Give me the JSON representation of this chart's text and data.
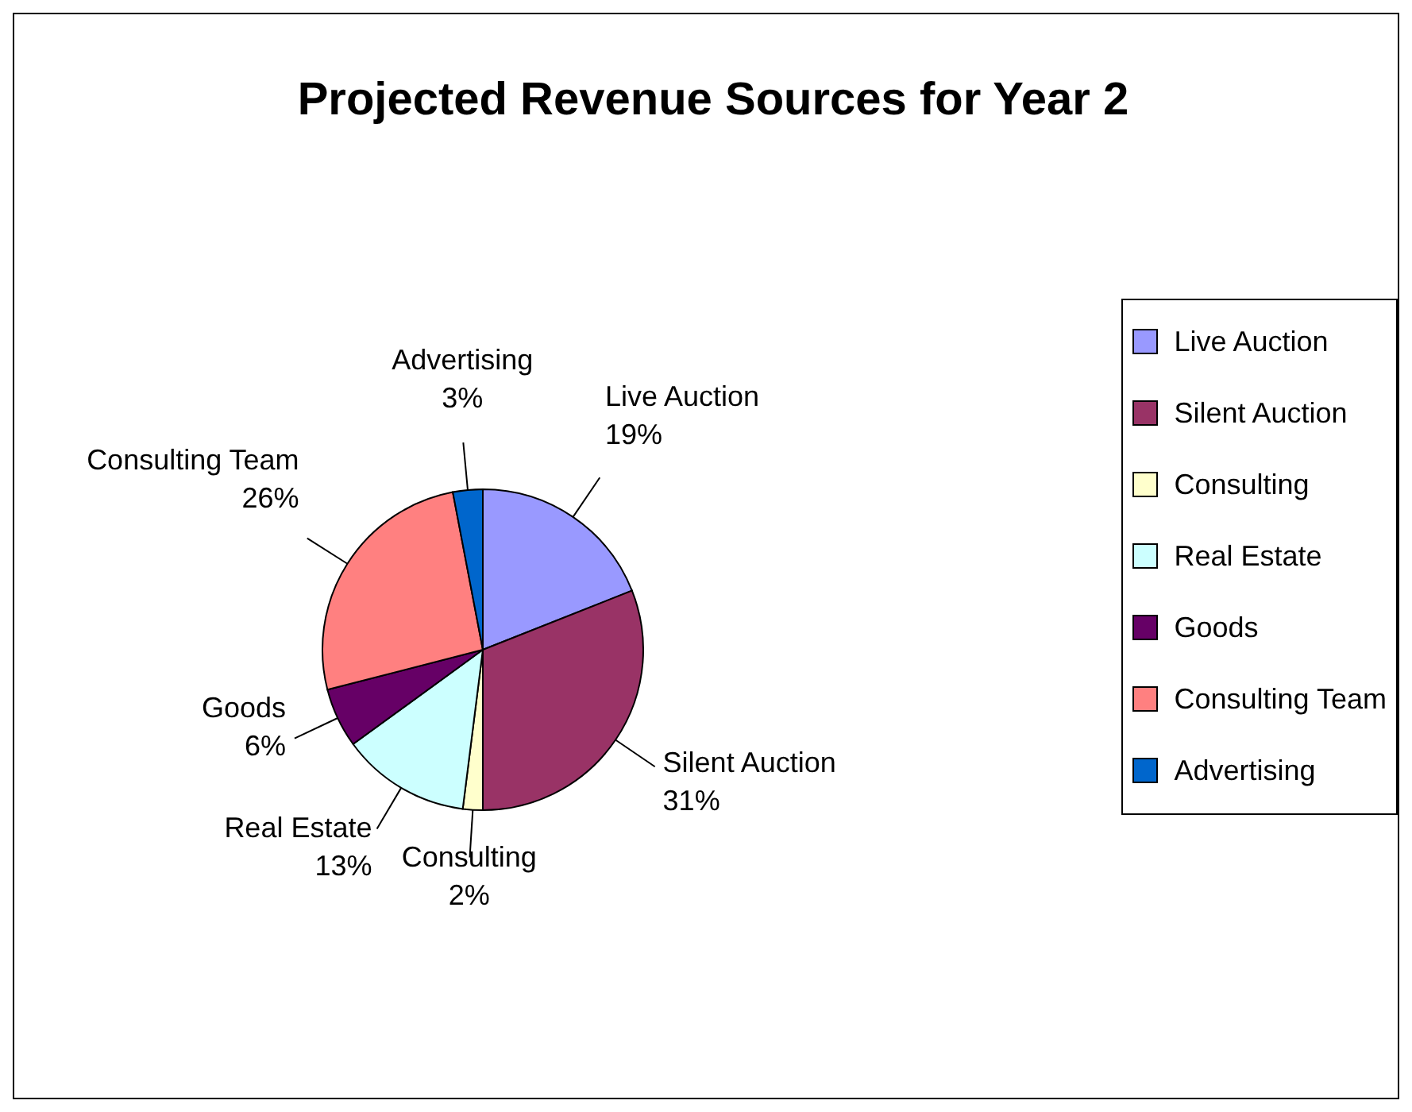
{
  "chart_data": {
    "type": "pie",
    "title": "Projected Revenue Sources for Year 2",
    "categories": [
      "Live Auction",
      "Silent Auction",
      "Consulting",
      "Real Estate",
      "Goods",
      "Consulting Team",
      "Advertising"
    ],
    "values": [
      19,
      31,
      2,
      13,
      6,
      26,
      3
    ],
    "value_labels": [
      "19%",
      "31%",
      "2%",
      "13%",
      "6%",
      "26%",
      "3%"
    ],
    "colors": [
      "#9999ff",
      "#993366",
      "#ffffcc",
      "#ccffff",
      "#660066",
      "#ff8080",
      "#0066cc"
    ],
    "legend": "right"
  }
}
